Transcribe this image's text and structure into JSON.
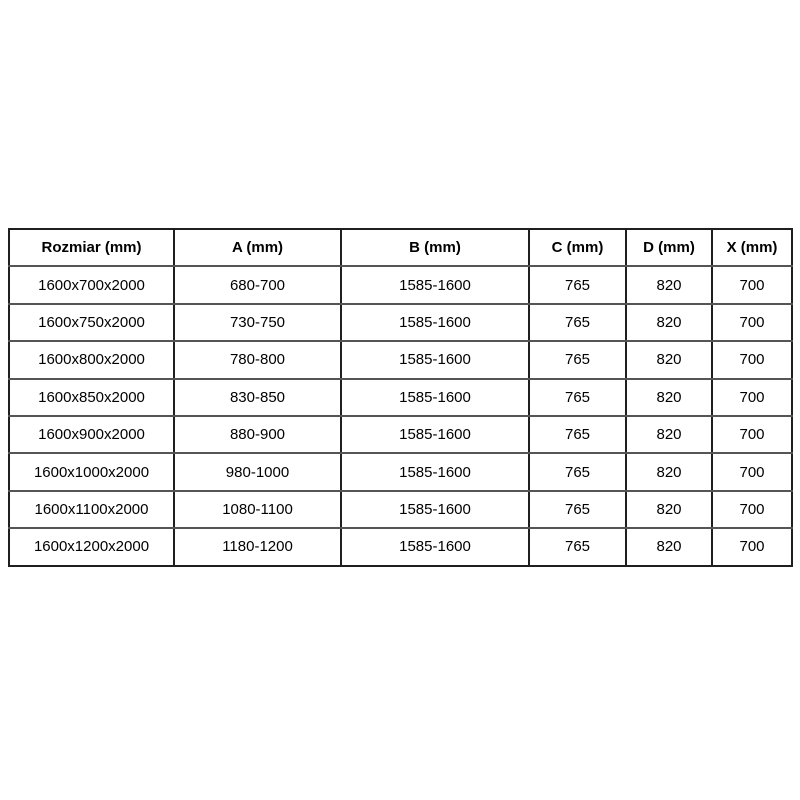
{
  "page": {
    "background_color": "#ffffff",
    "text_color": "#000000",
    "border_color_vertical": "#1f1f1f",
    "border_color_horizontal": "#555555"
  },
  "table": {
    "headers": [
      "Rozmiar (mm)",
      "A (mm)",
      "B (mm)",
      "C (mm)",
      "D (mm)",
      "X (mm)"
    ],
    "rows": [
      [
        "1600x700x2000",
        "680-700",
        "1585-1600",
        "765",
        "820",
        "700"
      ],
      [
        "1600x750x2000",
        "730-750",
        "1585-1600",
        "765",
        "820",
        "700"
      ],
      [
        "1600x800x2000",
        "780-800",
        "1585-1600",
        "765",
        "820",
        "700"
      ],
      [
        "1600x850x2000",
        "830-850",
        "1585-1600",
        "765",
        "820",
        "700"
      ],
      [
        "1600x900x2000",
        "880-900",
        "1585-1600",
        "765",
        "820",
        "700"
      ],
      [
        "1600x1000x2000",
        "980-1000",
        "1585-1600",
        "765",
        "820",
        "700"
      ],
      [
        "1600x1100x2000",
        "1080-1100",
        "1585-1600",
        "765",
        "820",
        "700"
      ],
      [
        "1600x1200x2000",
        "1180-1200",
        "1585-1600",
        "765",
        "820",
        "700"
      ]
    ]
  }
}
